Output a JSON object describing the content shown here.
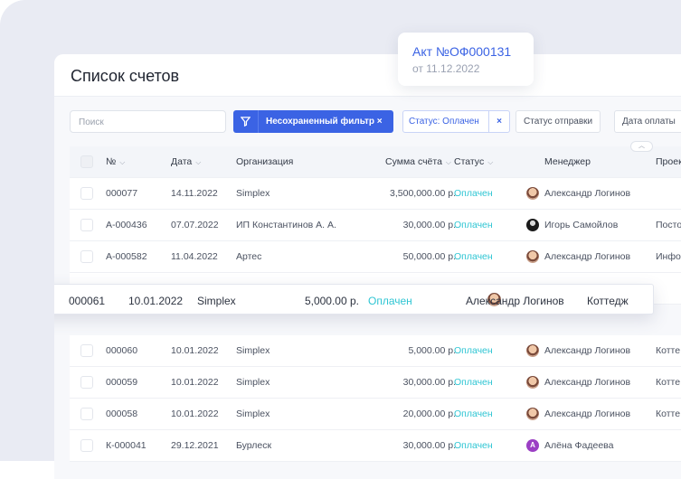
{
  "page": {
    "title": "Список счетов"
  },
  "toolbar": {
    "search_placeholder": "Поиск",
    "filter_label": "Несохраненный фильтр ×",
    "status_chip": "Статус: Оплачен",
    "status_chip_close": "×",
    "chip_send_status": "Статус отправки",
    "chip_pay_date": "Дата оплаты"
  },
  "tooltip": {
    "act": "Акт №ОФ000131",
    "date": "от 11.12.2022"
  },
  "table": {
    "columns": [
      "№",
      "Дата",
      "Организация",
      "Сумма счёта",
      "Статус",
      "Менеджер",
      "Проект"
    ],
    "rows_top": [
      {
        "num": "000077",
        "date": "14.11.2022",
        "org": "Simplex",
        "sum": "3,500,000.00 р.",
        "status": "Оплачен",
        "manager": "Александр Логинов",
        "project": "",
        "avatar": "photo"
      },
      {
        "num": "А-000436",
        "date": "07.07.2022",
        "org": "ИП Константинов А. А.",
        "sum": "30,000.00 р.",
        "status": "Оплачен",
        "manager": "Игорь Самойлов",
        "project": "Посто",
        "avatar": "dark"
      },
      {
        "num": "А-000582",
        "date": "11.04.2022",
        "org": "Артес",
        "sum": "50,000.00 р.",
        "status": "Оплачен",
        "manager": "Александр Логинов",
        "project": "Инфор",
        "avatar": "photo"
      }
    ],
    "selected_row": {
      "num": "000061",
      "date": "10.01.2022",
      "org": "Simplex",
      "sum": "5,000.00 р.",
      "status": "Оплачен",
      "manager": "Александр Логинов",
      "project": "Коттедж",
      "checked": true
    },
    "rows_bottom": [
      {
        "num": "000060",
        "date": "10.01.2022",
        "org": "Simplex",
        "sum": "5,000.00 р.",
        "status": "Оплачен",
        "manager": "Александр Логинов",
        "project": "Котте",
        "avatar": "photo"
      },
      {
        "num": "000059",
        "date": "10.01.2022",
        "org": "Simplex",
        "sum": "30,000.00 р.",
        "status": "Оплачен",
        "manager": "Александр Логинов",
        "project": "Котте",
        "avatar": "photo"
      },
      {
        "num": "000058",
        "date": "10.01.2022",
        "org": "Simplex",
        "sum": "20,000.00 р.",
        "status": "Оплачен",
        "manager": "Александр Логинов",
        "project": "Котте",
        "avatar": "photo"
      },
      {
        "num": "К-000041",
        "date": "29.12.2021",
        "org": "Бурлеск",
        "sum": "30,000.00 р.",
        "status": "Оплачен",
        "manager": "Алёна Фадеева",
        "project": "",
        "avatar": "A"
      }
    ]
  },
  "colors": {
    "accent": "#3b63e4",
    "status_paid": "#2ec5d3"
  }
}
